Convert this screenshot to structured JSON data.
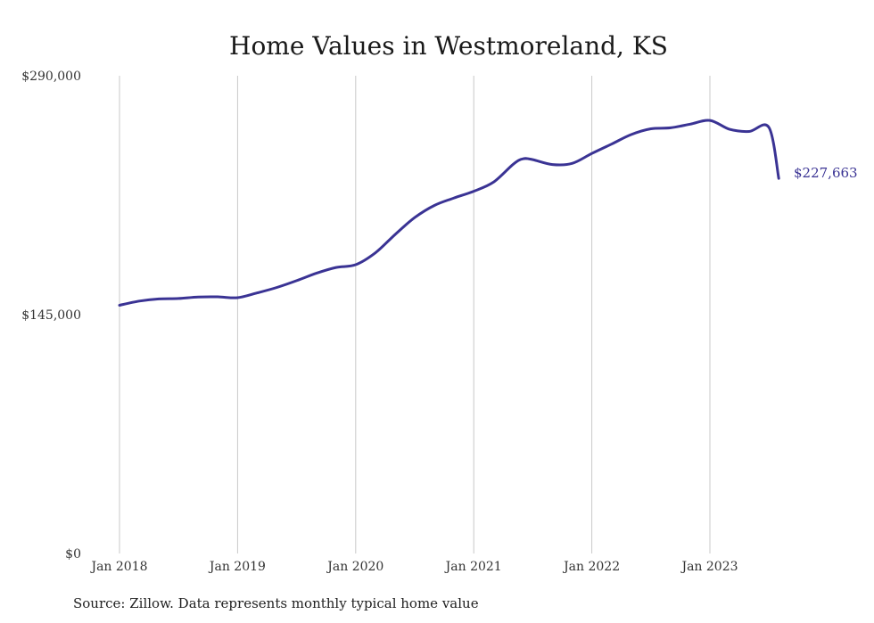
{
  "chart_data": {
    "type": "line",
    "title": "Home Values in Westmoreland, KS",
    "xlabel": "",
    "ylabel": "",
    "ylim": [
      0,
      290000
    ],
    "yticks": [
      {
        "value": 0,
        "label": "$0"
      },
      {
        "value": 145000,
        "label": "$145,000"
      },
      {
        "value": 290000,
        "label": "$290,000"
      }
    ],
    "xticks": [
      {
        "date": "2018-01",
        "label": "Jan 2018"
      },
      {
        "date": "2019-01",
        "label": "Jan 2019"
      },
      {
        "date": "2020-01",
        "label": "Jan 2020"
      },
      {
        "date": "2021-01",
        "label": "Jan 2021"
      },
      {
        "date": "2022-01",
        "label": "Jan 2022"
      },
      {
        "date": "2023-01",
        "label": "Jan 2023"
      }
    ],
    "grid": "vertical",
    "line_color": "#3a3394",
    "end_label": "$227,663",
    "series": [
      {
        "x": [
          "2018-01",
          "2018-03",
          "2018-05",
          "2018-07",
          "2018-09",
          "2018-11",
          "2019-01",
          "2019-03",
          "2019-05",
          "2019-07",
          "2019-09",
          "2019-11",
          "2020-01",
          "2020-03",
          "2020-05",
          "2020-07",
          "2020-09",
          "2020-11",
          "2021-01",
          "2021-03",
          "2021-05",
          "2021-06",
          "2021-07",
          "2021-09",
          "2021-11",
          "2022-01",
          "2022-03",
          "2022-05",
          "2022-07",
          "2022-09",
          "2022-11",
          "2023-01",
          "2023-03",
          "2023-05",
          "2023-07",
          "2023-08"
        ],
        "values": [
          150700,
          153200,
          154500,
          154800,
          155700,
          155800,
          155300,
          158200,
          161500,
          165600,
          170100,
          173600,
          175300,
          182500,
          193600,
          203900,
          211300,
          215800,
          219900,
          225400,
          236200,
          239600,
          239100,
          236100,
          236800,
          242800,
          248500,
          254300,
          257800,
          258400,
          260600,
          262900,
          257500,
          256200,
          258600,
          227663
        ]
      }
    ],
    "source": "Source: Zillow. Data represents monthly typical home value"
  }
}
